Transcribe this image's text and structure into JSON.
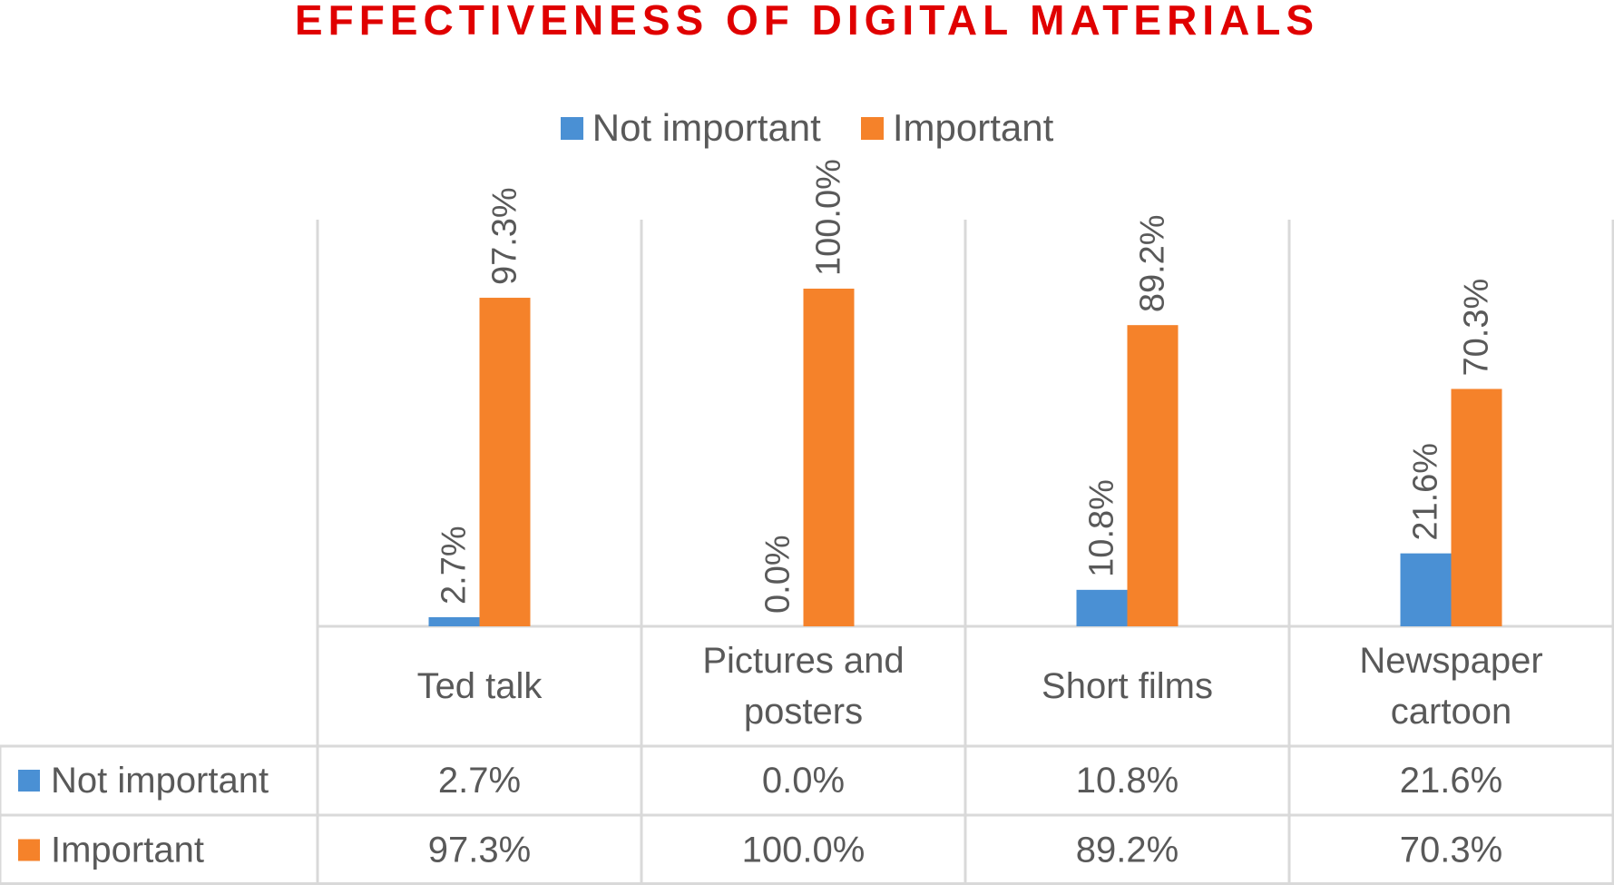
{
  "title": "EFFECTIVENESS OF DIGITAL MATERIALS",
  "colors": {
    "not_important": "#4A90D4",
    "important": "#F5822A",
    "grid": "#D9D9D9",
    "text": "#595959",
    "title": "#E00000"
  },
  "chart_data": {
    "type": "bar",
    "title": "EFFECTIVENESS OF DIGITAL MATERIALS",
    "categories": [
      [
        "Ted talk"
      ],
      [
        "Pictures and",
        "posters"
      ],
      [
        "Short films"
      ],
      [
        "Newspaper",
        "cartoon"
      ]
    ],
    "series": [
      {
        "name": "Not important",
        "values": [
          2.7,
          0.0,
          10.8,
          21.6
        ],
        "labels": [
          "2.7%",
          "0.0%",
          "10.8%",
          "21.6%"
        ]
      },
      {
        "name": "Important",
        "values": [
          97.3,
          100.0,
          89.2,
          70.3
        ],
        "labels": [
          "97.3%",
          "100.0%",
          "89.2%",
          "70.3%"
        ]
      }
    ],
    "ylim": [
      0,
      100
    ],
    "legend": "top",
    "data_table": true
  }
}
